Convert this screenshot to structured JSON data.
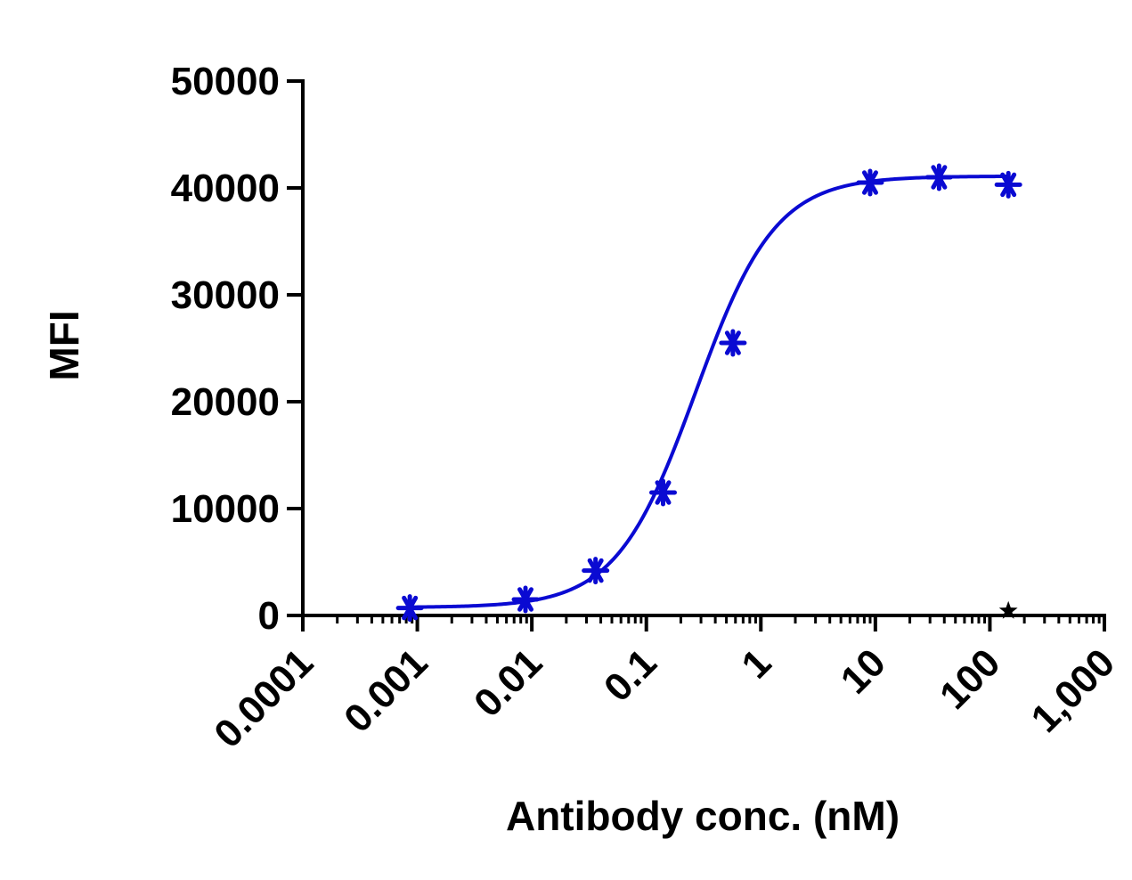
{
  "chart_data": {
    "type": "scatter",
    "title": "",
    "xlabel": "Antibody conc. (nM)",
    "ylabel": "MFI",
    "x_scale": "log",
    "xlim": [
      0.0001,
      1000
    ],
    "ylim": [
      0,
      50000
    ],
    "x_ticks": [
      0.0001,
      0.001,
      0.01,
      0.1,
      1,
      10,
      100,
      1000
    ],
    "x_tick_labels": [
      "0.0001",
      "0.001",
      "0.01",
      "0.1",
      "1",
      "10",
      "100",
      "1,000"
    ],
    "y_ticks": [
      0,
      10000,
      20000,
      30000,
      40000,
      50000
    ],
    "y_tick_labels": [
      "0",
      "10000",
      "20000",
      "30000",
      "40000",
      "50000"
    ],
    "grid": false,
    "legend": "none",
    "series": [
      {
        "color": "#0a0ad2",
        "marker": "asterisk",
        "fit": "four-parameter logistic",
        "x": [
          0.00086,
          0.0088,
          0.036,
          0.14,
          0.57,
          9.0,
          36,
          145
        ],
        "y": [
          700,
          1500,
          4200,
          11500,
          25500,
          40500,
          41000,
          40300
        ]
      },
      {
        "color": "#000000",
        "marker": "star",
        "x": [
          145
        ],
        "y": [
          600
        ]
      }
    ]
  }
}
